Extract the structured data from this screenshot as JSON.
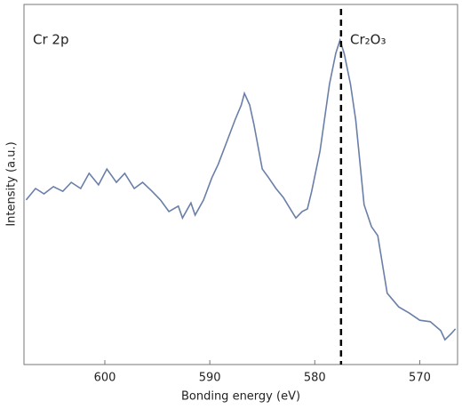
{
  "chart_data": {
    "type": "line",
    "xlabel": "Bonding energy (eV)",
    "ylabel": "Intensity (a.u.)",
    "annotations": [
      "Cr 2p",
      "Cr₂O₃"
    ],
    "vline": 577.5,
    "xlim": [
      607.7,
      566.4
    ],
    "xticks": [
      600,
      590,
      580,
      570
    ],
    "ylim": [
      0,
      100
    ],
    "x": [
      607.5,
      606.6,
      605.8,
      604.9,
      604.0,
      603.2,
      602.3,
      601.5,
      600.6,
      599.8,
      598.9,
      598.1,
      597.2,
      596.4,
      595.5,
      594.7,
      593.9,
      593.0,
      592.6,
      591.8,
      591.4,
      590.6,
      589.8,
      589.2,
      588.4,
      587.6,
      587.0,
      586.7,
      586.2,
      585.8,
      585.0,
      584.4,
      583.7,
      583.0,
      582.5,
      581.8,
      581.2,
      580.7,
      580.3,
      579.5,
      578.6,
      578.0,
      577.6,
      577.2,
      576.6,
      576.1,
      575.3,
      574.6,
      574.0,
      573.1,
      572.0,
      571.0,
      570.0,
      569.0,
      568.0,
      567.6,
      567.0,
      566.6
    ],
    "series": [
      {
        "color": "#6a7fa8",
        "values": [
          45.7,
          48.9,
          47.4,
          49.4,
          48.1,
          50.6,
          48.9,
          53.1,
          49.9,
          54.3,
          50.6,
          53.1,
          48.9,
          50.6,
          48.1,
          45.7,
          42.5,
          44.0,
          40.7,
          44.9,
          41.5,
          45.7,
          51.9,
          55.6,
          61.7,
          67.9,
          72.1,
          75.3,
          72.1,
          66.7,
          54.3,
          51.9,
          48.9,
          46.4,
          44.0,
          40.7,
          42.5,
          43.2,
          48.1,
          59.3,
          77.8,
          86.4,
          90.1,
          86.4,
          77.8,
          67.9,
          44.4,
          38.3,
          35.8,
          19.8,
          16.0,
          14.3,
          12.3,
          11.9,
          9.4,
          6.9,
          8.6,
          9.9
        ]
      }
    ]
  }
}
